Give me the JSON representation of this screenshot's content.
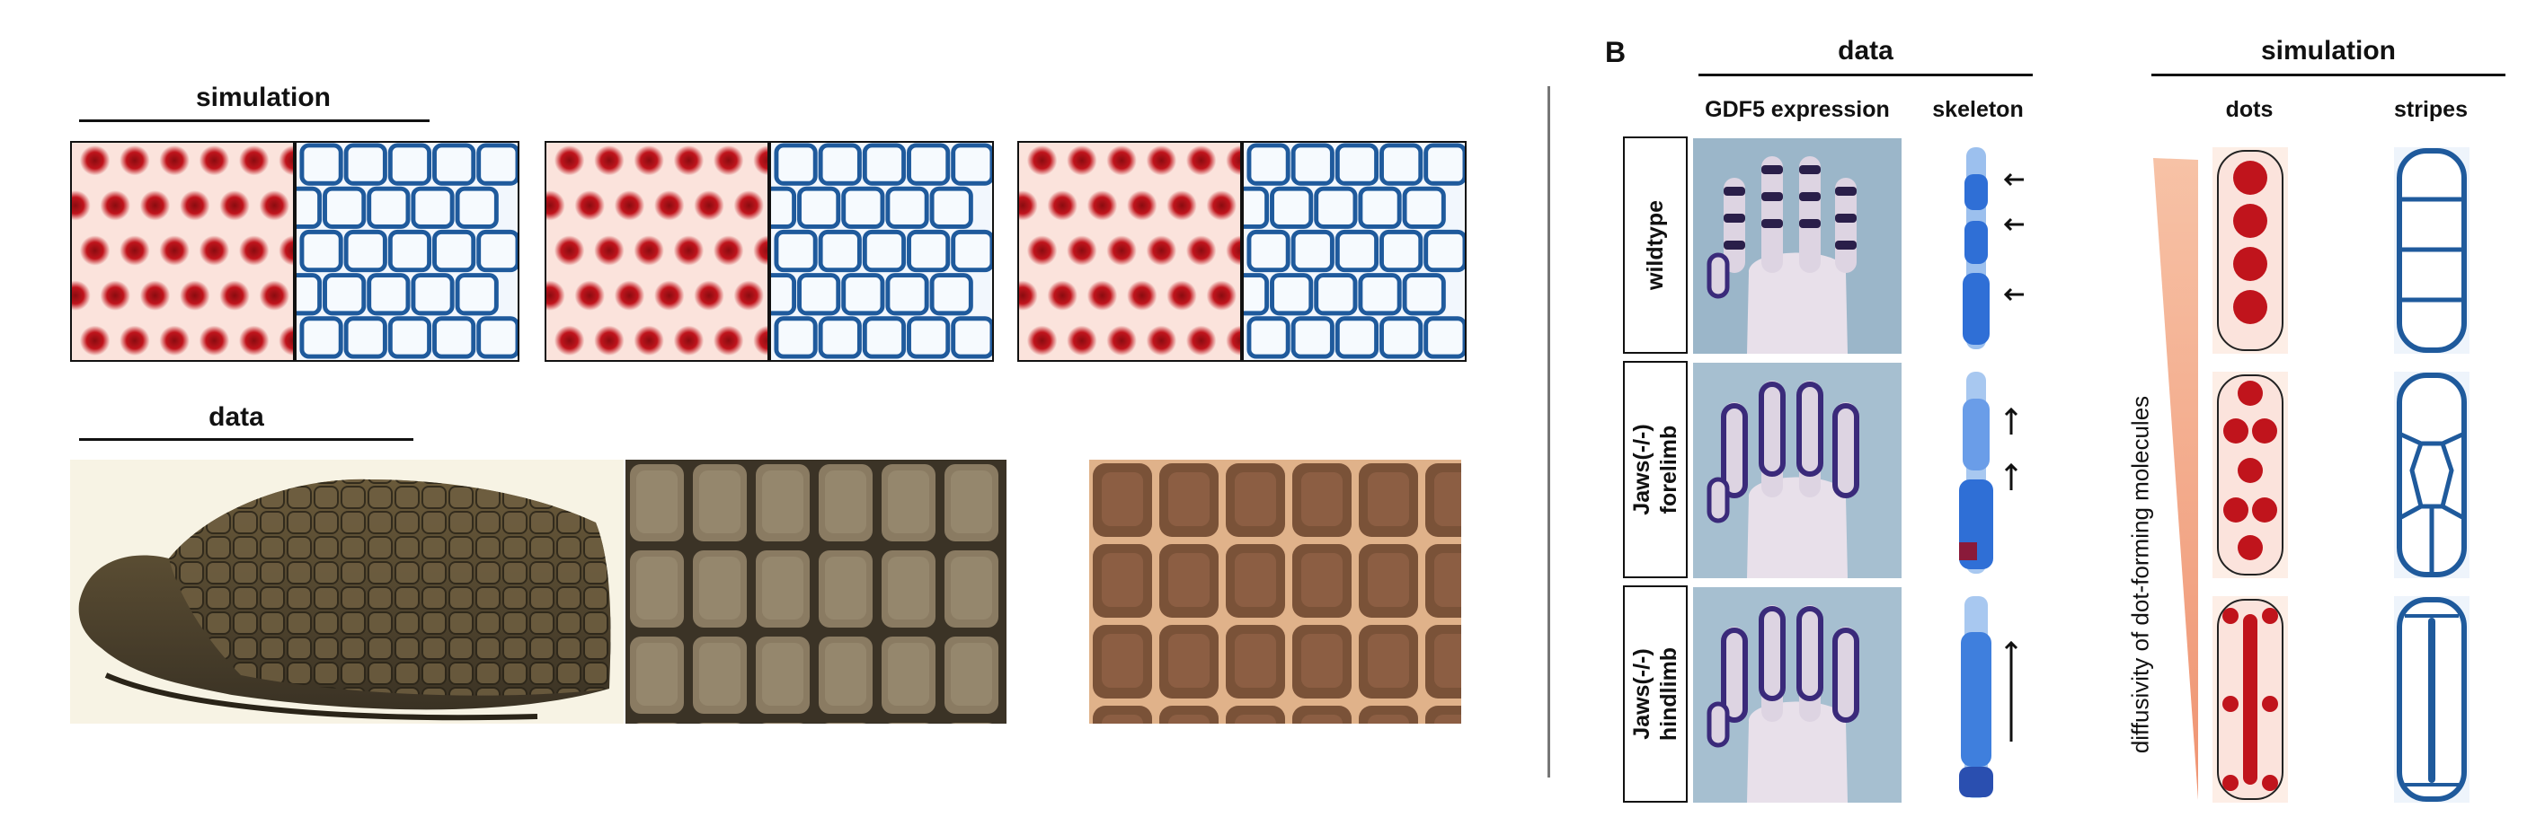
{
  "panel_a": {
    "simulation_heading": "simulation",
    "data_heading": "data"
  },
  "panel_b": {
    "letter": "B",
    "data_heading": "data",
    "simulation_heading": "simulation",
    "col_gdf5": "GDF5 expression",
    "col_skeleton": "skeleton",
    "col_dots": "dots",
    "col_stripes": "stripes",
    "rows": [
      "wildtype",
      "Jaws(-/-)\nforelimb",
      "Jaws(-/-)\nhindlimb"
    ],
    "gradient_label": "diffusivity of dot-forming molecules"
  },
  "colors": {
    "dot_red": "#c0141c",
    "stripe_blue": "#1f5a9c",
    "gradient_orange": "#f0a07a",
    "stain_purple": "#3a2a7a",
    "skeleton_blue": "#2f6fd6"
  }
}
